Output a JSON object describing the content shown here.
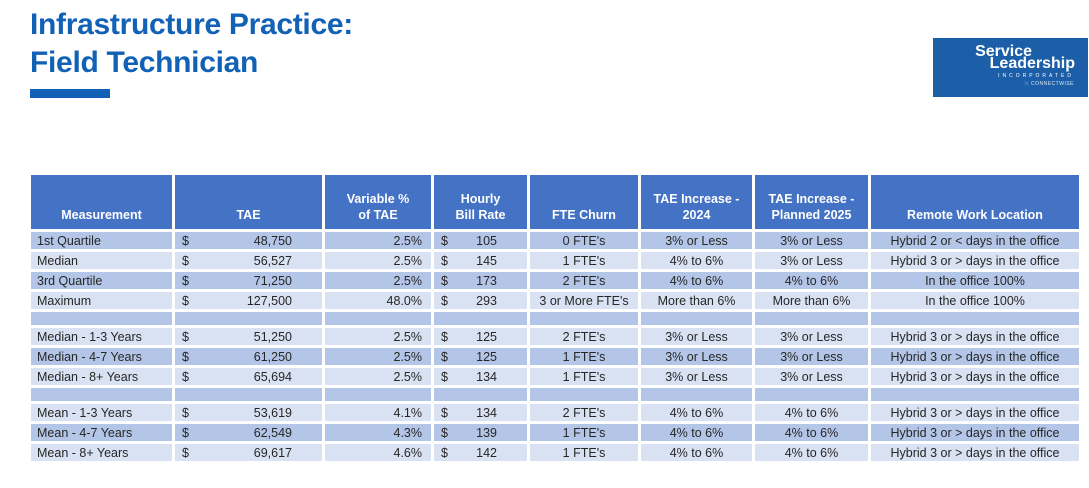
{
  "title": {
    "line1": "Infrastructure Practice:",
    "line2": "Field Technician"
  },
  "logo": {
    "line1": "Service",
    "line2": "Leadership",
    "line3": "INCORPORATED",
    "line4": "CONNECTWISE"
  },
  "colors": {
    "title_blue": "#1161B6",
    "logo_blue": "#1C5FA8",
    "header_blue": "#4472C4",
    "row_dark": "#B4C6E7",
    "row_light": "#D9E2F3",
    "text": "#262626"
  },
  "table": {
    "currency_symbol": "$",
    "columns": [
      {
        "id": "measurement",
        "lines": [
          "Measurement"
        ]
      },
      {
        "id": "tae",
        "lines": [
          "TAE"
        ]
      },
      {
        "id": "variable-pct",
        "lines": [
          "Variable %",
          "of TAE"
        ]
      },
      {
        "id": "bill-rate",
        "lines": [
          "Hourly",
          "Bill Rate"
        ]
      },
      {
        "id": "fte-churn",
        "lines": [
          "FTE Churn"
        ]
      },
      {
        "id": "tae-increase-2024",
        "lines": [
          "TAE Increase -",
          "2024"
        ]
      },
      {
        "id": "tae-increase-2025",
        "lines": [
          "TAE Increase -",
          "Planned 2025"
        ]
      },
      {
        "id": "remote-work",
        "lines": [
          "Remote Work Location"
        ]
      }
    ],
    "rows": [
      {
        "spacer": false,
        "shade": "dark",
        "measurement": "1st Quartile",
        "tae": "48,750",
        "variable_pct": "2.5%",
        "bill_rate": "105",
        "fte_churn": "0 FTE's",
        "tae_increase_2024": "3% or Less",
        "tae_increase_2025": "3% or Less",
        "remote": "Hybrid 2 or < days in the office"
      },
      {
        "spacer": false,
        "shade": "light",
        "measurement": "Median",
        "tae": "56,527",
        "variable_pct": "2.5%",
        "bill_rate": "145",
        "fte_churn": "1 FTE's",
        "tae_increase_2024": "4% to 6%",
        "tae_increase_2025": "3% or Less",
        "remote": "Hybrid 3 or > days in the office"
      },
      {
        "spacer": false,
        "shade": "dark",
        "measurement": "3rd Quartile",
        "tae": "71,250",
        "variable_pct": "2.5%",
        "bill_rate": "173",
        "fte_churn": "2 FTE's",
        "tae_increase_2024": "4% to 6%",
        "tae_increase_2025": "4% to 6%",
        "remote": "In the office 100%"
      },
      {
        "spacer": false,
        "shade": "light",
        "measurement": "Maximum",
        "tae": "127,500",
        "variable_pct": "48.0%",
        "bill_rate": "293",
        "fte_churn": "3 or More FTE's",
        "tae_increase_2024": "More than 6%",
        "tae_increase_2025": "More than 6%",
        "remote": "In the office 100%"
      },
      {
        "spacer": true,
        "shade": "dark",
        "measurement": "",
        "tae": "",
        "variable_pct": "",
        "bill_rate": "",
        "fte_churn": "",
        "tae_increase_2024": "",
        "tae_increase_2025": "",
        "remote": ""
      },
      {
        "spacer": false,
        "shade": "light",
        "measurement": "Median - 1-3 Years",
        "tae": "51,250",
        "variable_pct": "2.5%",
        "bill_rate": "125",
        "fte_churn": "2 FTE's",
        "tae_increase_2024": "3% or Less",
        "tae_increase_2025": "3% or Less",
        "remote": "Hybrid 3 or > days in the office"
      },
      {
        "spacer": false,
        "shade": "dark",
        "measurement": "Median - 4-7 Years",
        "tae": "61,250",
        "variable_pct": "2.5%",
        "bill_rate": "125",
        "fte_churn": "1 FTE's",
        "tae_increase_2024": "3% or Less",
        "tae_increase_2025": "3% or Less",
        "remote": "Hybrid 3 or > days in the office"
      },
      {
        "spacer": false,
        "shade": "light",
        "measurement": "Median - 8+ Years",
        "tae": "65,694",
        "variable_pct": "2.5%",
        "bill_rate": "134",
        "fte_churn": "1 FTE's",
        "tae_increase_2024": "3% or Less",
        "tae_increase_2025": "3% or Less",
        "remote": "Hybrid 3 or > days in the office"
      },
      {
        "spacer": true,
        "shade": "dark",
        "measurement": "",
        "tae": "",
        "variable_pct": "",
        "bill_rate": "",
        "fte_churn": "",
        "tae_increase_2024": "",
        "tae_increase_2025": "",
        "remote": ""
      },
      {
        "spacer": false,
        "shade": "light",
        "measurement": "Mean - 1-3 Years",
        "tae": "53,619",
        "variable_pct": "4.1%",
        "bill_rate": "134",
        "fte_churn": "2 FTE's",
        "tae_increase_2024": "4% to 6%",
        "tae_increase_2025": "4% to 6%",
        "remote": "Hybrid 3 or > days in the office"
      },
      {
        "spacer": false,
        "shade": "dark",
        "measurement": "Mean - 4-7 Years",
        "tae": "62,549",
        "variable_pct": "4.3%",
        "bill_rate": "139",
        "fte_churn": "1 FTE's",
        "tae_increase_2024": "4% to 6%",
        "tae_increase_2025": "4% to 6%",
        "remote": "Hybrid 3 or > days in the office"
      },
      {
        "spacer": false,
        "shade": "light",
        "measurement": "Mean - 8+ Years",
        "tae": "69,617",
        "variable_pct": "4.6%",
        "bill_rate": "142",
        "fte_churn": "1 FTE's",
        "tae_increase_2024": "4% to 6%",
        "tae_increase_2025": "4% to 6%",
        "remote": "Hybrid 3 or > days in the office"
      }
    ]
  }
}
